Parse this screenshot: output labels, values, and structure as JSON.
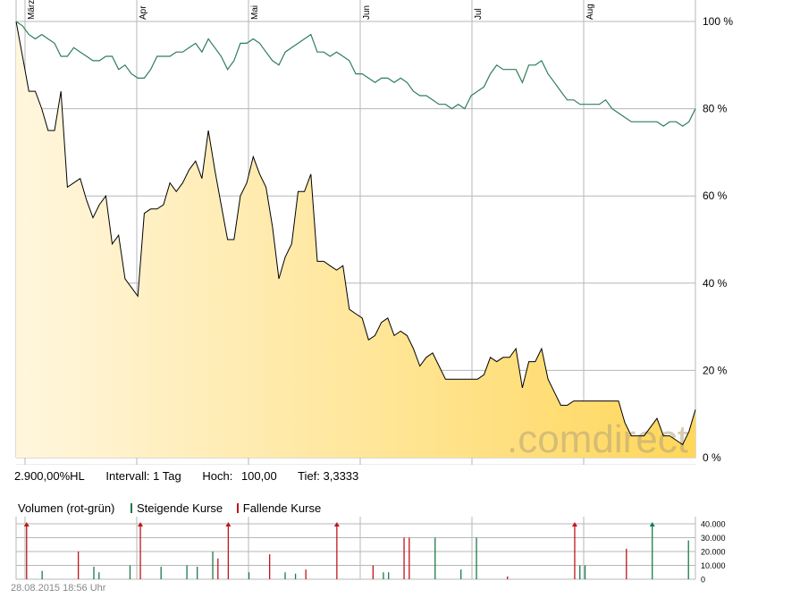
{
  "chart_data": [
    {
      "type": "area",
      "x_labels": [
        "März",
        "Apr",
        "Mai",
        "Jun",
        "Jul",
        "Aug"
      ],
      "y_ticks": [
        "100 %",
        "80 %",
        "60 %",
        "40 %",
        "20 %",
        "0 %"
      ],
      "ylim": [
        0,
        100
      ],
      "grid": true,
      "watermark": ".comdirect",
      "series": [
        {
          "color": "#000000",
          "fill": "gold-gradient",
          "values": [
            100,
            92,
            84,
            84,
            80,
            75,
            75,
            84,
            62,
            63,
            64,
            59,
            55,
            58,
            60,
            49,
            51,
            41,
            39,
            37,
            56,
            57,
            57,
            58,
            63,
            61,
            63,
            66,
            68,
            64,
            75,
            66,
            58,
            50,
            50,
            60,
            63,
            69,
            65,
            62,
            53,
            41,
            46,
            49,
            61,
            61,
            65,
            45,
            45,
            44,
            43,
            44,
            34,
            33,
            32,
            27,
            28,
            31,
            32,
            28,
            29,
            28,
            25,
            21,
            23,
            24,
            21,
            18,
            18,
            18,
            18,
            18,
            18,
            19,
            23,
            22,
            23,
            23,
            25,
            16,
            22,
            22,
            25,
            18,
            15,
            12,
            12,
            13,
            13,
            13,
            13,
            13,
            13,
            13,
            13,
            8,
            5,
            5,
            5,
            7,
            9,
            5,
            5,
            4,
            3,
            6,
            11
          ]
        },
        {
          "color": "#2e7d5b",
          "values": [
            100,
            99,
            97,
            96,
            97,
            96,
            95,
            92,
            92,
            94,
            93,
            92,
            91,
            91,
            92,
            92,
            89,
            90,
            88,
            87,
            87,
            89,
            92,
            92,
            92,
            93,
            93,
            94,
            95,
            93,
            96,
            94,
            92,
            89,
            91,
            95,
            95,
            96,
            95,
            93,
            91,
            90,
            93,
            94,
            95,
            96,
            97,
            93,
            93,
            92,
            93,
            92,
            91,
            88,
            88,
            87,
            86,
            87,
            87,
            86,
            87,
            86,
            84,
            83,
            83,
            82,
            81,
            81,
            80,
            81,
            80,
            83,
            84,
            85,
            88,
            90,
            89,
            89,
            89,
            86,
            90,
            90,
            91,
            88,
            86,
            84,
            82,
            82,
            81,
            81,
            81,
            81,
            82,
            80,
            79,
            78,
            77,
            77,
            77,
            77,
            77,
            76,
            77,
            77,
            76,
            77,
            80
          ]
        }
      ]
    },
    {
      "type": "bar",
      "title": "Volumen (rot-grün)",
      "y_ticks": [
        "40.000",
        "30.000",
        "20.000",
        "10.000",
        "0"
      ],
      "ylim": [
        0,
        40000
      ],
      "up_color": "#1a7a4a",
      "down_color": "#c0141c",
      "bars": [
        {
          "pos": 1,
          "v": 42000,
          "dir": "down"
        },
        {
          "pos": 4,
          "v": 6000,
          "dir": "up"
        },
        {
          "pos": 11,
          "v": 20000,
          "dir": "down"
        },
        {
          "pos": 14,
          "v": 9000,
          "dir": "up"
        },
        {
          "pos": 15,
          "v": 5000,
          "dir": "up"
        },
        {
          "pos": 21,
          "v": 10000,
          "dir": "up"
        },
        {
          "pos": 23,
          "v": 40000,
          "dir": "down"
        },
        {
          "pos": 27,
          "v": 9000,
          "dir": "up"
        },
        {
          "pos": 32,
          "v": 10000,
          "dir": "up"
        },
        {
          "pos": 34,
          "v": 9000,
          "dir": "up"
        },
        {
          "pos": 37,
          "v": 20000,
          "dir": "up"
        },
        {
          "pos": 38,
          "v": 15000,
          "dir": "down"
        },
        {
          "pos": 40,
          "v": 40000,
          "dir": "down"
        },
        {
          "pos": 44,
          "v": 5000,
          "dir": "up"
        },
        {
          "pos": 48,
          "v": 18000,
          "dir": "down"
        },
        {
          "pos": 51,
          "v": 5000,
          "dir": "up"
        },
        {
          "pos": 53,
          "v": 4000,
          "dir": "up"
        },
        {
          "pos": 55,
          "v": 7000,
          "dir": "down"
        },
        {
          "pos": 61,
          "v": 40000,
          "dir": "down"
        },
        {
          "pos": 68,
          "v": 10000,
          "dir": "down"
        },
        {
          "pos": 70,
          "v": 5000,
          "dir": "up"
        },
        {
          "pos": 71,
          "v": 5000,
          "dir": "up"
        },
        {
          "pos": 74,
          "v": 30000,
          "dir": "down"
        },
        {
          "pos": 75,
          "v": 30000,
          "dir": "down"
        },
        {
          "pos": 80,
          "v": 30000,
          "dir": "up"
        },
        {
          "pos": 85,
          "v": 7000,
          "dir": "up"
        },
        {
          "pos": 88,
          "v": 30000,
          "dir": "up"
        },
        {
          "pos": 94,
          "v": 2000,
          "dir": "down"
        },
        {
          "pos": 107,
          "v": 40000,
          "dir": "down"
        },
        {
          "pos": 108,
          "v": 10000,
          "dir": "up"
        },
        {
          "pos": 109,
          "v": 10000,
          "dir": "up"
        },
        {
          "pos": 117,
          "v": 22000,
          "dir": "down"
        },
        {
          "pos": 122,
          "v": 40000,
          "dir": "up"
        },
        {
          "pos": 129,
          "v": 28000,
          "dir": "up"
        }
      ]
    }
  ],
  "info": {
    "range_label": "2.900,00%HL",
    "interval": "Intervall: 1 Tag",
    "high_label": "Hoch:",
    "high_value": "100,00",
    "low": "Tief: 3,3333"
  },
  "legend": {
    "volume_label": "Volumen (rot-grün)",
    "rising_label": "Steigende Kurse",
    "falling_label": "Fallende Kurse",
    "rising_color": "#1a7a4a",
    "falling_color": "#c0141c"
  },
  "footer": {
    "timestamp": "28.08.2015 18:56 Uhr"
  }
}
